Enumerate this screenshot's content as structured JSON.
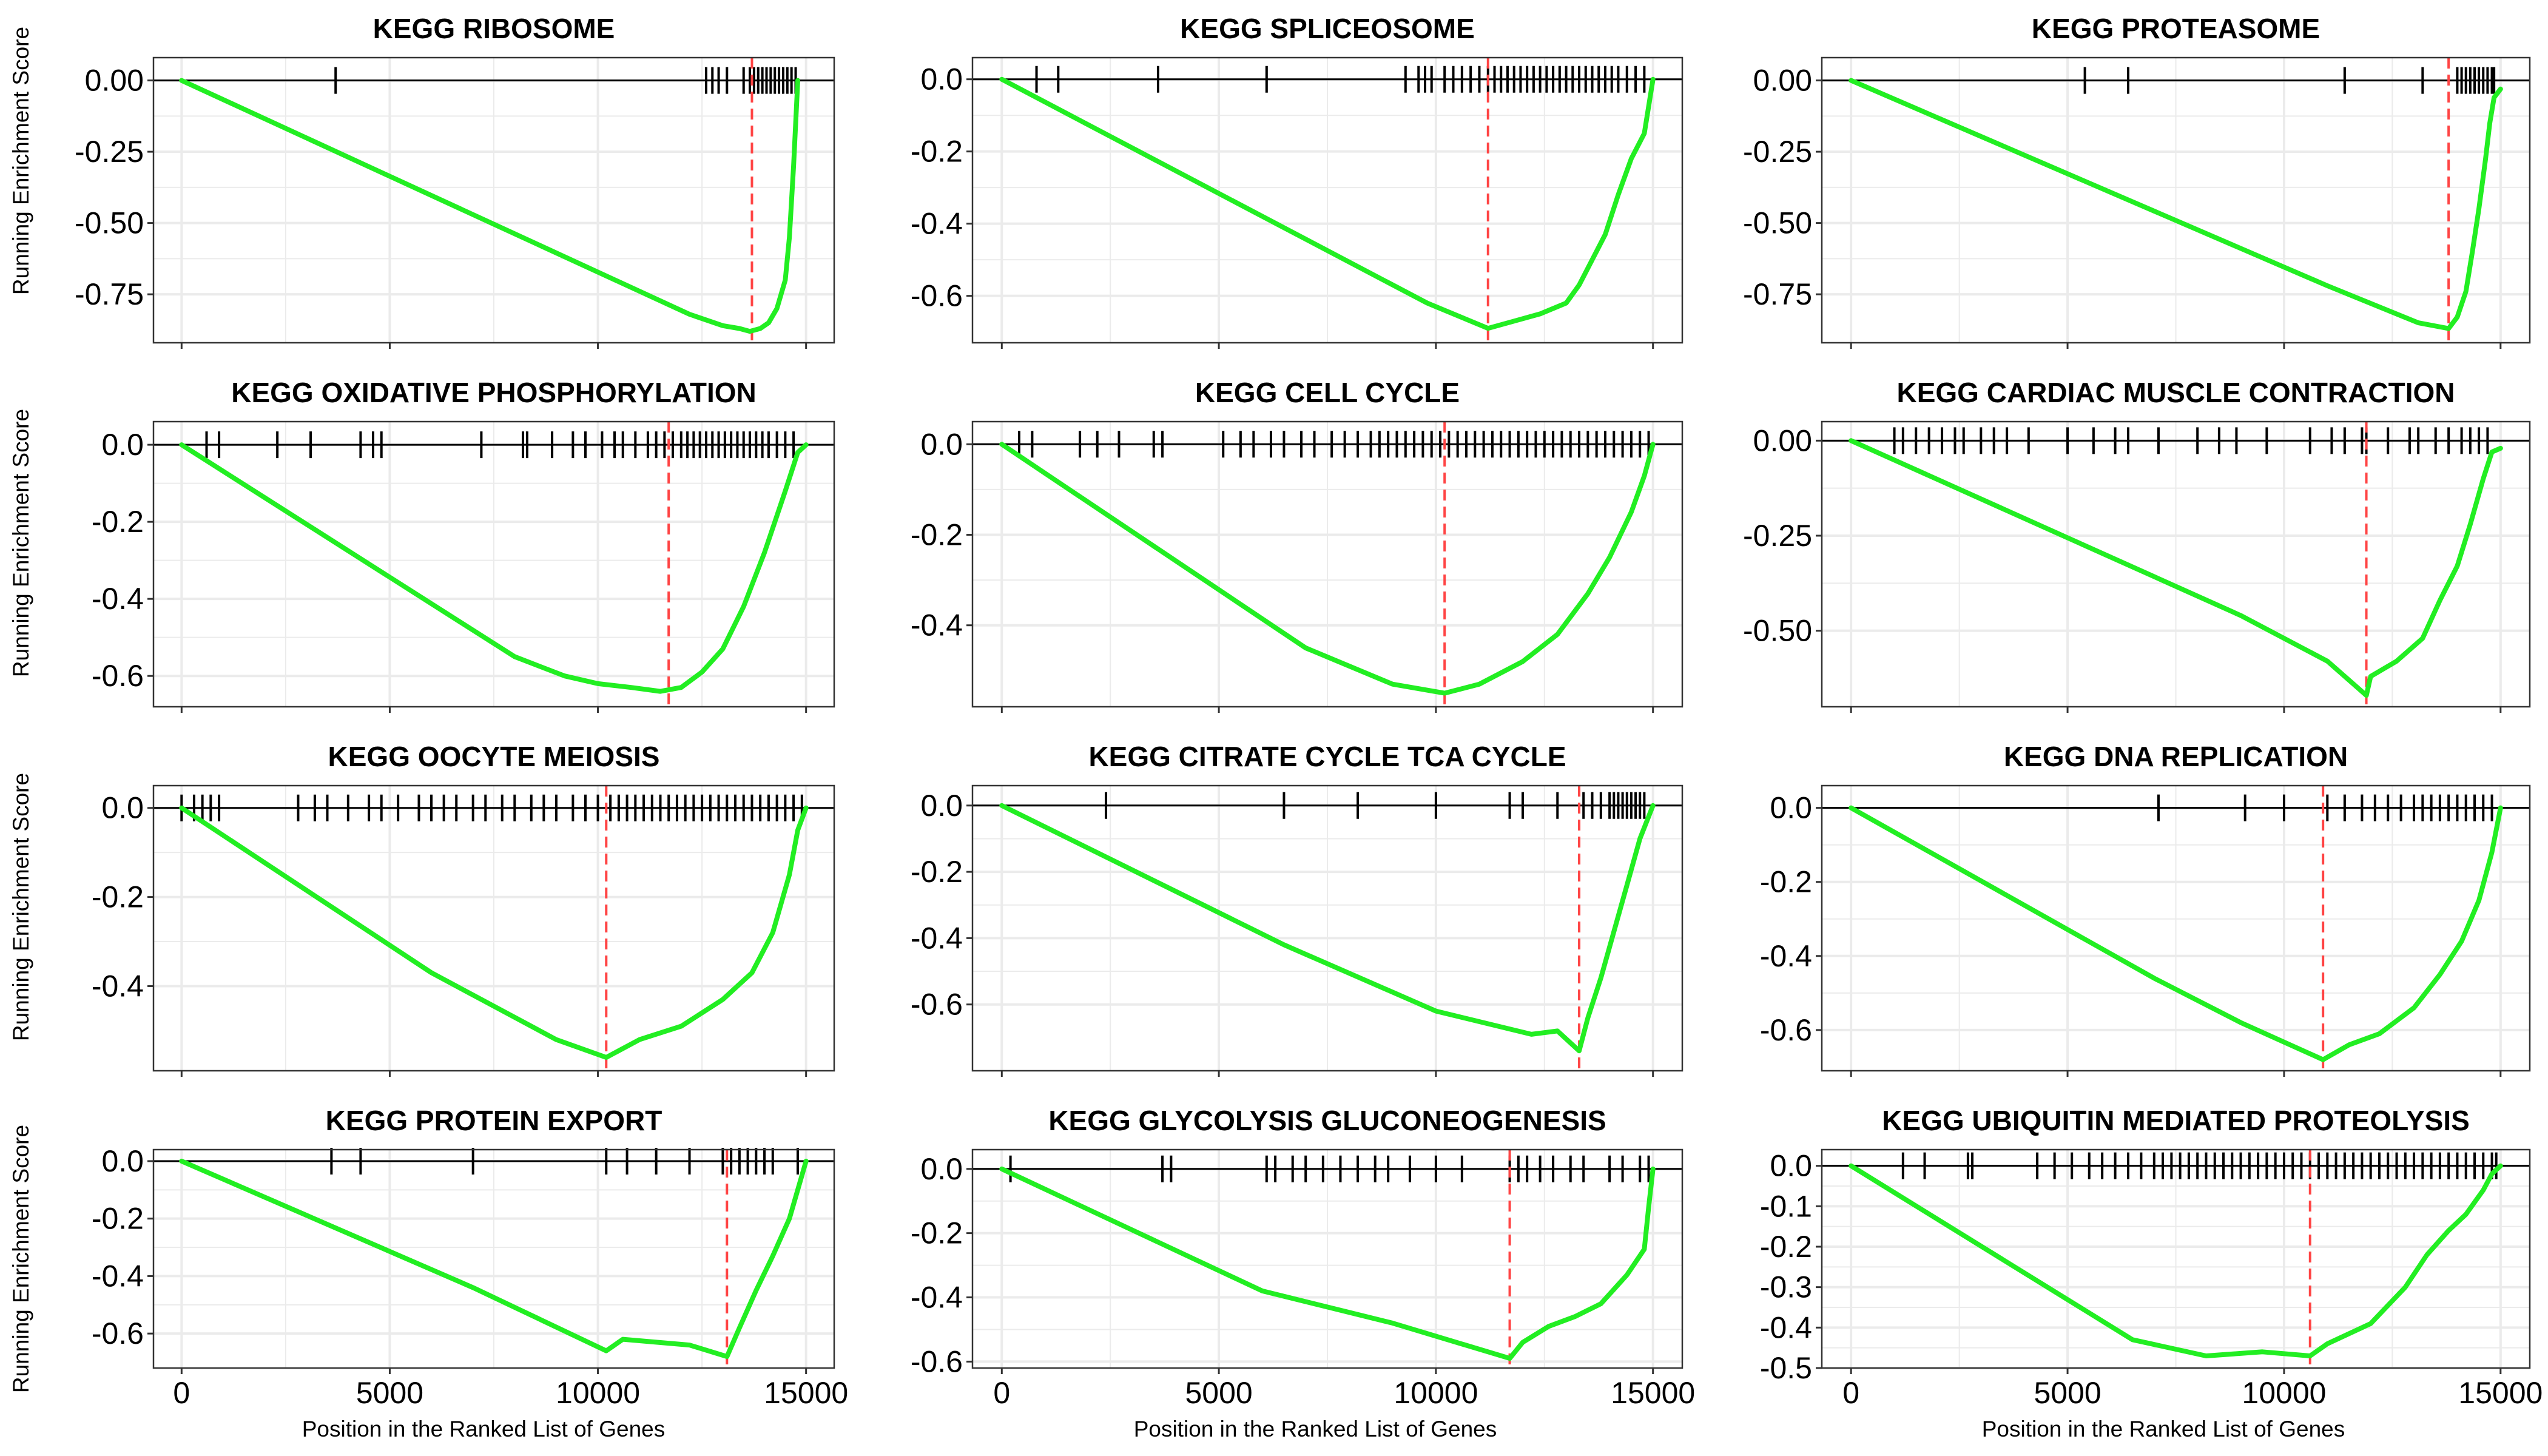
{
  "figure": {
    "ylabel": "Running Enrichment Score",
    "xlabel": "Position in the Ranked List of Genes",
    "colors": {
      "curve": "#22ee22",
      "lead_line": "#ff4444",
      "grid": "#ebebeb",
      "axis": "#000000"
    }
  },
  "chart_data": [
    {
      "type": "line",
      "title": "KEGG RIBOSOME",
      "xlim": [
        0,
        15000
      ],
      "ylim": [
        -0.92,
        0.08
      ],
      "yticks": [
        0.0,
        -0.25,
        -0.5,
        -0.75
      ],
      "ytick_labels": [
        "0.00",
        "-0.25",
        "-0.50",
        "-0.75"
      ],
      "xticks": [
        0,
        5000,
        10000,
        15000
      ],
      "xtick_labels": [
        "0",
        "5000",
        "10000",
        "15000"
      ],
      "show_x_ticklabels": false,
      "peak_x": 13700,
      "hits": [
        3700,
        12600,
        12750,
        12900,
        13100,
        13500,
        13650,
        13750,
        13850,
        13950,
        14050,
        14150,
        14250,
        14350,
        14450,
        14550,
        14650,
        14750
      ],
      "x": [
        0,
        12200,
        13000,
        13400,
        13650,
        13900,
        14100,
        14300,
        14500,
        14600,
        14700,
        14800
      ],
      "y": [
        0.0,
        -0.82,
        -0.86,
        -0.87,
        -0.88,
        -0.87,
        -0.85,
        -0.8,
        -0.7,
        -0.55,
        -0.3,
        0.0
      ]
    },
    {
      "type": "line",
      "title": "KEGG SPLICEOSOME",
      "xlim": [
        0,
        15000
      ],
      "ylim": [
        -0.73,
        0.06
      ],
      "yticks": [
        0.0,
        -0.2,
        -0.4,
        -0.6
      ],
      "ytick_labels": [
        "0.0",
        "-0.2",
        "-0.4",
        "-0.6"
      ],
      "xticks": [
        0,
        5000,
        10000,
        15000
      ],
      "xtick_labels": [
        "0",
        "5000",
        "10000",
        "15000"
      ],
      "show_x_ticklabels": false,
      "peak_x": 11200,
      "hits": [
        800,
        1300,
        3600,
        6100,
        9300,
        9600,
        9750,
        9900,
        10200,
        10400,
        10600,
        10800,
        11000,
        11200,
        11350,
        11500,
        11650,
        11800,
        11950,
        12100,
        12250,
        12400,
        12550,
        12700,
        12850,
        13000,
        13150,
        13300,
        13450,
        13600,
        13750,
        13900,
        14050,
        14200,
        14400,
        14600,
        14800
      ],
      "x": [
        0,
        9800,
        11200,
        11800,
        12400,
        13000,
        13300,
        13600,
        13900,
        14200,
        14500,
        14800,
        15000
      ],
      "y": [
        0.0,
        -0.62,
        -0.69,
        -0.67,
        -0.65,
        -0.62,
        -0.57,
        -0.5,
        -0.43,
        -0.32,
        -0.22,
        -0.15,
        0.0
      ]
    },
    {
      "type": "line",
      "title": "KEGG PROTEASOME",
      "xlim": [
        0,
        15000
      ],
      "ylim": [
        -0.92,
        0.08
      ],
      "yticks": [
        0.0,
        -0.25,
        -0.5,
        -0.75
      ],
      "ytick_labels": [
        "0.00",
        "-0.25",
        "-0.50",
        "-0.75"
      ],
      "xticks": [
        0,
        5000,
        10000,
        15000
      ],
      "xtick_labels": [
        "0",
        "5000",
        "10000",
        "15000"
      ],
      "show_x_ticklabels": false,
      "peak_x": 13800,
      "hits": [
        5400,
        6400,
        11400,
        13200,
        14000,
        14100,
        14200,
        14300,
        14400,
        14500,
        14600,
        14700,
        14800,
        14850
      ],
      "x": [
        0,
        11000,
        13100,
        13800,
        14000,
        14200,
        14350,
        14500,
        14650,
        14750,
        14850,
        15000
      ],
      "y": [
        0.0,
        -0.72,
        -0.85,
        -0.87,
        -0.83,
        -0.74,
        -0.6,
        -0.45,
        -0.28,
        -0.15,
        -0.06,
        -0.03
      ]
    },
    {
      "type": "line",
      "title": "KEGG OXIDATIVE PHOSPHORYLATION",
      "xlim": [
        0,
        15000
      ],
      "ylim": [
        -0.68,
        0.06
      ],
      "yticks": [
        0.0,
        -0.2,
        -0.4,
        -0.6
      ],
      "ytick_labels": [
        "0.0",
        "-0.2",
        "-0.4",
        "-0.6"
      ],
      "xticks": [
        0,
        5000,
        10000,
        15000
      ],
      "xtick_labels": [
        "0",
        "5000",
        "10000",
        "15000"
      ],
      "show_x_ticklabels": false,
      "peak_x": 11700,
      "hits": [
        600,
        900,
        2300,
        3100,
        4300,
        4600,
        4800,
        7200,
        8200,
        8300,
        8900,
        9400,
        9700,
        10100,
        10400,
        10600,
        10900,
        11200,
        11400,
        11600,
        11800,
        12000,
        12150,
        12300,
        12450,
        12600,
        12750,
        12900,
        13050,
        13200,
        13350,
        13500,
        13650,
        13800,
        13950,
        14100,
        14300,
        14500,
        14700
      ],
      "x": [
        0,
        8000,
        9200,
        10000,
        10800,
        11500,
        12000,
        12500,
        13000,
        13500,
        14000,
        14500,
        14800,
        15000
      ],
      "y": [
        0.0,
        -0.55,
        -0.6,
        -0.62,
        -0.63,
        -0.64,
        -0.63,
        -0.59,
        -0.53,
        -0.42,
        -0.28,
        -0.12,
        -0.02,
        0.0
      ]
    },
    {
      "type": "line",
      "title": "KEGG CELL CYCLE",
      "xlim": [
        0,
        15000
      ],
      "ylim": [
        -0.58,
        0.05
      ],
      "yticks": [
        0.0,
        -0.2,
        -0.4
      ],
      "ytick_labels": [
        "0.0",
        "-0.2",
        "-0.4"
      ],
      "xticks": [
        0,
        5000,
        10000,
        15000
      ],
      "xtick_labels": [
        "0",
        "5000",
        "10000",
        "15000"
      ],
      "show_x_ticklabels": false,
      "peak_x": 10200,
      "hits": [
        400,
        700,
        1800,
        2200,
        2700,
        3500,
        3700,
        5100,
        5500,
        5800,
        6200,
        6500,
        6900,
        7200,
        7600,
        7900,
        8200,
        8500,
        8700,
        8900,
        9100,
        9300,
        9500,
        9700,
        9900,
        10100,
        10300,
        10500,
        10700,
        10900,
        11100,
        11300,
        11500,
        11700,
        11900,
        12100,
        12300,
        12500,
        12700,
        12900,
        13100,
        13300,
        13500,
        13700,
        13900,
        14100,
        14300,
        14500,
        14700,
        14900
      ],
      "x": [
        0,
        7000,
        9000,
        10200,
        11000,
        12000,
        12800,
        13500,
        14000,
        14500,
        14800,
        15000
      ],
      "y": [
        0.0,
        -0.45,
        -0.53,
        -0.55,
        -0.53,
        -0.48,
        -0.42,
        -0.33,
        -0.25,
        -0.15,
        -0.07,
        0.0
      ]
    },
    {
      "type": "line",
      "title": "KEGG CARDIAC MUSCLE CONTRACTION",
      "xlim": [
        0,
        15000
      ],
      "ylim": [
        -0.7,
        0.05
      ],
      "yticks": [
        0.0,
        -0.25,
        -0.5
      ],
      "ytick_labels": [
        "0.00",
        "-0.25",
        "-0.50"
      ],
      "xticks": [
        0,
        5000,
        10000,
        15000
      ],
      "xtick_labels": [
        "0",
        "5000",
        "10000",
        "15000"
      ],
      "show_x_ticklabels": false,
      "peak_x": 11900,
      "hits": [
        1000,
        1200,
        1500,
        1800,
        2100,
        2400,
        2600,
        3000,
        3300,
        3600,
        4100,
        5000,
        5600,
        6100,
        6400,
        7100,
        8000,
        8500,
        8900,
        9600,
        10600,
        11100,
        11400,
        11800,
        11900,
        12400,
        12900,
        13100,
        13500,
        13800,
        14100,
        14300,
        14500,
        14700
      ],
      "x": [
        0,
        9000,
        11000,
        11900,
        12000,
        12600,
        13200,
        13600,
        14000,
        14300,
        14600,
        14800,
        15000
      ],
      "y": [
        0.0,
        -0.46,
        -0.58,
        -0.67,
        -0.62,
        -0.58,
        -0.52,
        -0.42,
        -0.33,
        -0.22,
        -0.1,
        -0.03,
        -0.02
      ]
    },
    {
      "type": "line",
      "title": "KEGG OOCYTE MEIOSIS",
      "xlim": [
        0,
        15000
      ],
      "ylim": [
        -0.59,
        0.05
      ],
      "yticks": [
        0.0,
        -0.2,
        -0.4
      ],
      "ytick_labels": [
        "0.0",
        "-0.2",
        "-0.4"
      ],
      "xticks": [
        0,
        5000,
        10000,
        15000
      ],
      "xtick_labels": [
        "0",
        "5000",
        "10000",
        "15000"
      ],
      "show_x_ticklabels": false,
      "peak_x": 10200,
      "hits": [
        0,
        300,
        500,
        700,
        900,
        2800,
        3200,
        3500,
        4000,
        4500,
        4800,
        5200,
        5700,
        6000,
        6300,
        6600,
        7000,
        7300,
        7700,
        8000,
        8400,
        8700,
        9000,
        9400,
        9700,
        10000,
        10300,
        10500,
        10700,
        10900,
        11100,
        11300,
        11500,
        11700,
        11900,
        12100,
        12300,
        12500,
        12700,
        12900,
        13100,
        13300,
        13500,
        13700,
        13900,
        14100,
        14300,
        14500,
        14700,
        14900
      ],
      "x": [
        0,
        6000,
        9000,
        10200,
        11000,
        12000,
        13000,
        13700,
        14200,
        14600,
        14800,
        15000
      ],
      "y": [
        0.0,
        -0.37,
        -0.52,
        -0.56,
        -0.52,
        -0.49,
        -0.43,
        -0.37,
        -0.28,
        -0.15,
        -0.05,
        0.0
      ]
    },
    {
      "type": "line",
      "title": "KEGG CITRATE CYCLE TCA CYCLE",
      "xlim": [
        0,
        15000
      ],
      "ylim": [
        -0.8,
        0.06
      ],
      "yticks": [
        0.0,
        -0.2,
        -0.4,
        -0.6
      ],
      "ytick_labels": [
        "0.0",
        "-0.2",
        "-0.4",
        "-0.6"
      ],
      "xticks": [
        0,
        5000,
        10000,
        15000
      ],
      "xtick_labels": [
        "0",
        "5000",
        "10000",
        "15000"
      ],
      "show_x_ticklabels": false,
      "peak_x": 13300,
      "hits": [
        2400,
        6500,
        8200,
        10000,
        11700,
        12000,
        12800,
        13400,
        13600,
        13800,
        14000,
        14100,
        14200,
        14300,
        14400,
        14500,
        14600,
        14700,
        14800
      ],
      "x": [
        0,
        6500,
        10000,
        12200,
        12800,
        13300,
        13500,
        13800,
        14100,
        14400,
        14700,
        15000
      ],
      "y": [
        0.0,
        -0.42,
        -0.62,
        -0.69,
        -0.68,
        -0.74,
        -0.64,
        -0.52,
        -0.38,
        -0.24,
        -0.1,
        0.0
      ]
    },
    {
      "type": "line",
      "title": "KEGG DNA REPLICATION",
      "xlim": [
        0,
        15000
      ],
      "ylim": [
        -0.71,
        0.06
      ],
      "yticks": [
        0.0,
        -0.2,
        -0.4,
        -0.6
      ],
      "ytick_labels": [
        "0.0",
        "-0.2",
        "-0.4",
        "-0.6"
      ],
      "xticks": [
        0,
        5000,
        10000,
        15000
      ],
      "xtick_labels": [
        "0",
        "5000",
        "10000",
        "15000"
      ],
      "show_x_ticklabels": false,
      "peak_x": 10900,
      "hits": [
        7100,
        9100,
        10000,
        11000,
        11400,
        11800,
        12100,
        12400,
        12700,
        13000,
        13200,
        13400,
        13600,
        13800,
        14000,
        14200,
        14400,
        14600,
        14800
      ],
      "x": [
        0,
        7000,
        9000,
        10900,
        11500,
        12200,
        13000,
        13600,
        14100,
        14500,
        14800,
        15000
      ],
      "y": [
        0.0,
        -0.46,
        -0.58,
        -0.68,
        -0.64,
        -0.61,
        -0.54,
        -0.45,
        -0.36,
        -0.25,
        -0.12,
        0.0
      ]
    },
    {
      "type": "line",
      "title": "KEGG PROTEIN EXPORT",
      "xlim": [
        0,
        15000
      ],
      "ylim": [
        -0.72,
        0.04
      ],
      "yticks": [
        0.0,
        -0.2,
        -0.4,
        -0.6
      ],
      "ytick_labels": [
        "0.0",
        "-0.2",
        "-0.4",
        "-0.6"
      ],
      "xticks": [
        0,
        5000,
        10000,
        15000
      ],
      "xtick_labels": [
        "0",
        "5000",
        "10000",
        "15000"
      ],
      "show_x_ticklabels": true,
      "peak_x": 13100,
      "hits": [
        3600,
        4300,
        7000,
        10200,
        10700,
        11400,
        12200,
        13000,
        13200,
        13400,
        13600,
        13800,
        14000,
        14200,
        14800
      ],
      "x": [
        0,
        7000,
        10200,
        10600,
        11400,
        12200,
        13100,
        13400,
        13800,
        14200,
        14600,
        14900,
        15000
      ],
      "y": [
        0.0,
        -0.44,
        -0.66,
        -0.62,
        -0.63,
        -0.64,
        -0.68,
        -0.58,
        -0.45,
        -0.33,
        -0.2,
        -0.05,
        0.0
      ]
    },
    {
      "type": "line",
      "title": "KEGG GLYCOLYSIS GLUCONEOGENESIS",
      "xlim": [
        0,
        15000
      ],
      "ylim": [
        -0.62,
        0.06
      ],
      "yticks": [
        0.0,
        -0.2,
        -0.4,
        -0.6
      ],
      "ytick_labels": [
        "0.0",
        "-0.2",
        "-0.4",
        "-0.6"
      ],
      "xticks": [
        0,
        5000,
        10000,
        15000
      ],
      "xtick_labels": [
        "0",
        "5000",
        "10000",
        "15000"
      ],
      "show_x_ticklabels": true,
      "peak_x": 11700,
      "hits": [
        200,
        3700,
        3900,
        6100,
        6300,
        6700,
        7000,
        7400,
        7800,
        8200,
        8600,
        8900,
        9400,
        10000,
        10600,
        11700,
        11900,
        12100,
        12400,
        12700,
        13100,
        13400,
        14000,
        14300,
        14700,
        14900
      ],
      "x": [
        0,
        6000,
        9000,
        11700,
        12000,
        12600,
        13200,
        13800,
        14400,
        14800,
        14900,
        15000
      ],
      "y": [
        0.0,
        -0.38,
        -0.48,
        -0.59,
        -0.54,
        -0.49,
        -0.46,
        -0.42,
        -0.33,
        -0.25,
        -0.12,
        0.0
      ]
    },
    {
      "type": "line",
      "title": "KEGG UBIQUITIN MEDIATED PROTEOLYSIS",
      "xlim": [
        0,
        15000
      ],
      "ylim": [
        -0.5,
        0.04
      ],
      "yticks": [
        0.0,
        -0.1,
        -0.2,
        -0.3,
        -0.4,
        -0.5
      ],
      "ytick_labels": [
        "0.0",
        "-0.1",
        "-0.2",
        "-0.3",
        "-0.4",
        "-0.5"
      ],
      "xticks": [
        0,
        5000,
        10000,
        15000
      ],
      "xtick_labels": [
        "0",
        "5000",
        "10000",
        "15000"
      ],
      "show_x_ticklabels": true,
      "peak_x": 10600,
      "hits": [
        1200,
        1700,
        2700,
        2800,
        4300,
        4700,
        5100,
        5500,
        5800,
        6100,
        6400,
        6700,
        7000,
        7200,
        7400,
        7600,
        7800,
        8000,
        8200,
        8400,
        8600,
        8800,
        9000,
        9200,
        9400,
        9600,
        9800,
        10000,
        10200,
        10400,
        10600,
        10800,
        11000,
        11200,
        11400,
        11600,
        11800,
        12000,
        12200,
        12400,
        12600,
        12800,
        13000,
        13200,
        13400,
        13600,
        13800,
        14000,
        14200,
        14400,
        14600,
        14800,
        14900
      ],
      "x": [
        0,
        6500,
        8200,
        9500,
        10600,
        11000,
        12000,
        12800,
        13300,
        13800,
        14200,
        14600,
        14800,
        15000
      ],
      "y": [
        0.0,
        -0.43,
        -0.47,
        -0.46,
        -0.47,
        -0.44,
        -0.39,
        -0.3,
        -0.22,
        -0.16,
        -0.12,
        -0.06,
        -0.02,
        0.0
      ]
    }
  ]
}
